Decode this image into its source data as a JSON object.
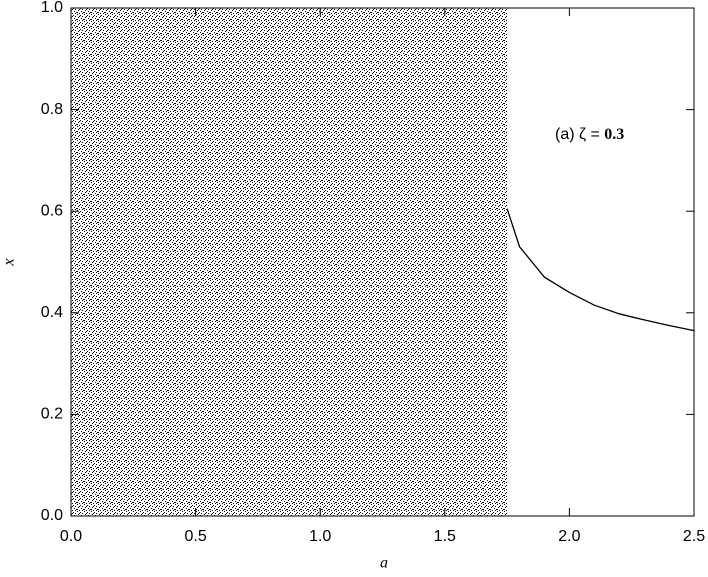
{
  "chart_data": {
    "type": "bifurcation",
    "xlabel": "a",
    "ylabel": "x",
    "annotation": [
      "(a) ζ = ",
      "0.3"
    ],
    "xlim": [
      0,
      2.5
    ],
    "ylim": [
      0,
      1
    ],
    "xticks": [
      {
        "value": 0,
        "label": "0.0"
      },
      {
        "value": 0.5,
        "label": "0.5"
      },
      {
        "value": 1,
        "label": "1.0"
      },
      {
        "value": 1.5,
        "label": "1.5"
      },
      {
        "value": 2,
        "label": "2.0"
      },
      {
        "value": 2.5,
        "label": "2.5"
      }
    ],
    "yticks": [
      {
        "value": 0,
        "label": "0.0"
      },
      {
        "value": 0.2,
        "label": "0.2"
      },
      {
        "value": 0.4,
        "label": "0.4"
      },
      {
        "value": 0.6,
        "label": "0.6"
      },
      {
        "value": 0.8,
        "label": "0.8"
      },
      {
        "value": 1,
        "label": "1.0"
      }
    ],
    "color": "#000000",
    "series": [
      {
        "kind": "band",
        "x": [
          0,
          1.75
        ],
        "low": [
          0,
          0
        ],
        "high": [
          1,
          1
        ]
      },
      {
        "kind": "line",
        "x": [
          1.75,
          1.8,
          1.9,
          2.0,
          2.1,
          2.2,
          2.3,
          2.4,
          2.5
        ],
        "values": [
          0.605,
          0.53,
          0.47,
          0.44,
          0.415,
          0.398,
          0.386,
          0.375,
          0.365
        ]
      }
    ]
  }
}
